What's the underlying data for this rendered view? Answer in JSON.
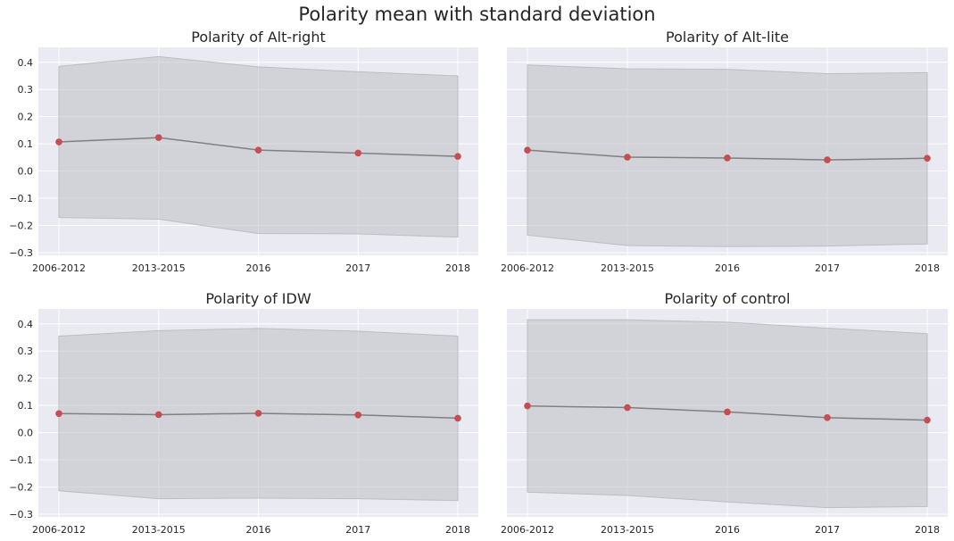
{
  "figure": {
    "title": "Polarity mean with standard deviation"
  },
  "style": {
    "background": "#eaeaf2",
    "grid": "#ffffff",
    "band": "#bdbdc4",
    "line": "#808080",
    "marker": "#c44e52",
    "text": "#262626"
  },
  "chart_data": [
    {
      "type": "line",
      "title": "Polarity of Alt-right",
      "categories": [
        "2006-2012",
        "2013-2015",
        "2016",
        "2017",
        "2018"
      ],
      "series": [
        {
          "values": [
            0.107,
            0.123,
            0.077,
            0.066,
            0.054
          ]
        }
      ],
      "band_upper": [
        0.385,
        0.421,
        0.383,
        0.365,
        0.35
      ],
      "band_lower": [
        -0.171,
        -0.177,
        -0.23,
        -0.231,
        -0.243
      ],
      "ylim": [
        -0.31,
        0.455
      ],
      "yticks": [
        -0.3,
        -0.2,
        -0.1,
        0.0,
        0.1,
        0.2,
        0.3,
        0.4
      ],
      "ytick_labels": [
        "−0.3",
        "−0.2",
        "−0.1",
        "0.0",
        "0.1",
        "0.2",
        "0.3",
        "0.4"
      ],
      "grid": true
    },
    {
      "type": "line",
      "title": "Polarity of Alt-lite",
      "categories": [
        "2006-2012",
        "2013-2015",
        "2016",
        "2017",
        "2018"
      ],
      "series": [
        {
          "values": [
            0.077,
            0.051,
            0.048,
            0.041,
            0.047
          ]
        }
      ],
      "band_upper": [
        0.39,
        0.376,
        0.374,
        0.358,
        0.362
      ],
      "band_lower": [
        -0.236,
        -0.274,
        -0.278,
        -0.276,
        -0.268
      ],
      "ylim": [
        -0.31,
        0.455
      ],
      "yticks": [
        -0.3,
        -0.2,
        -0.1,
        0.0,
        0.1,
        0.2,
        0.3,
        0.4
      ],
      "ytick_labels": [],
      "grid": true
    },
    {
      "type": "line",
      "title": "Polarity of IDW",
      "categories": [
        "2006-2012",
        "2013-2015",
        "2016",
        "2017",
        "2018"
      ],
      "series": [
        {
          "values": [
            0.07,
            0.066,
            0.071,
            0.065,
            0.053
          ]
        }
      ],
      "band_upper": [
        0.355,
        0.375,
        0.383,
        0.373,
        0.355
      ],
      "band_lower": [
        -0.214,
        -0.243,
        -0.241,
        -0.243,
        -0.25
      ],
      "ylim": [
        -0.31,
        0.455
      ],
      "yticks": [
        -0.3,
        -0.2,
        -0.1,
        0.0,
        0.1,
        0.2,
        0.3,
        0.4
      ],
      "ytick_labels": [
        "−0.3",
        "−0.2",
        "−0.1",
        "0.0",
        "0.1",
        "0.2",
        "0.3",
        "0.4"
      ],
      "grid": true
    },
    {
      "type": "line",
      "title": "Polarity of control",
      "categories": [
        "2006-2012",
        "2013-2015",
        "2016",
        "2017",
        "2018"
      ],
      "series": [
        {
          "values": [
            0.098,
            0.092,
            0.076,
            0.055,
            0.046
          ]
        }
      ],
      "band_upper": [
        0.415,
        0.415,
        0.406,
        0.384,
        0.364
      ],
      "band_lower": [
        -0.219,
        -0.231,
        -0.255,
        -0.276,
        -0.272
      ],
      "ylim": [
        -0.31,
        0.455
      ],
      "yticks": [
        -0.3,
        -0.2,
        -0.1,
        0.0,
        0.1,
        0.2,
        0.3,
        0.4
      ],
      "ytick_labels": [],
      "grid": true
    }
  ]
}
